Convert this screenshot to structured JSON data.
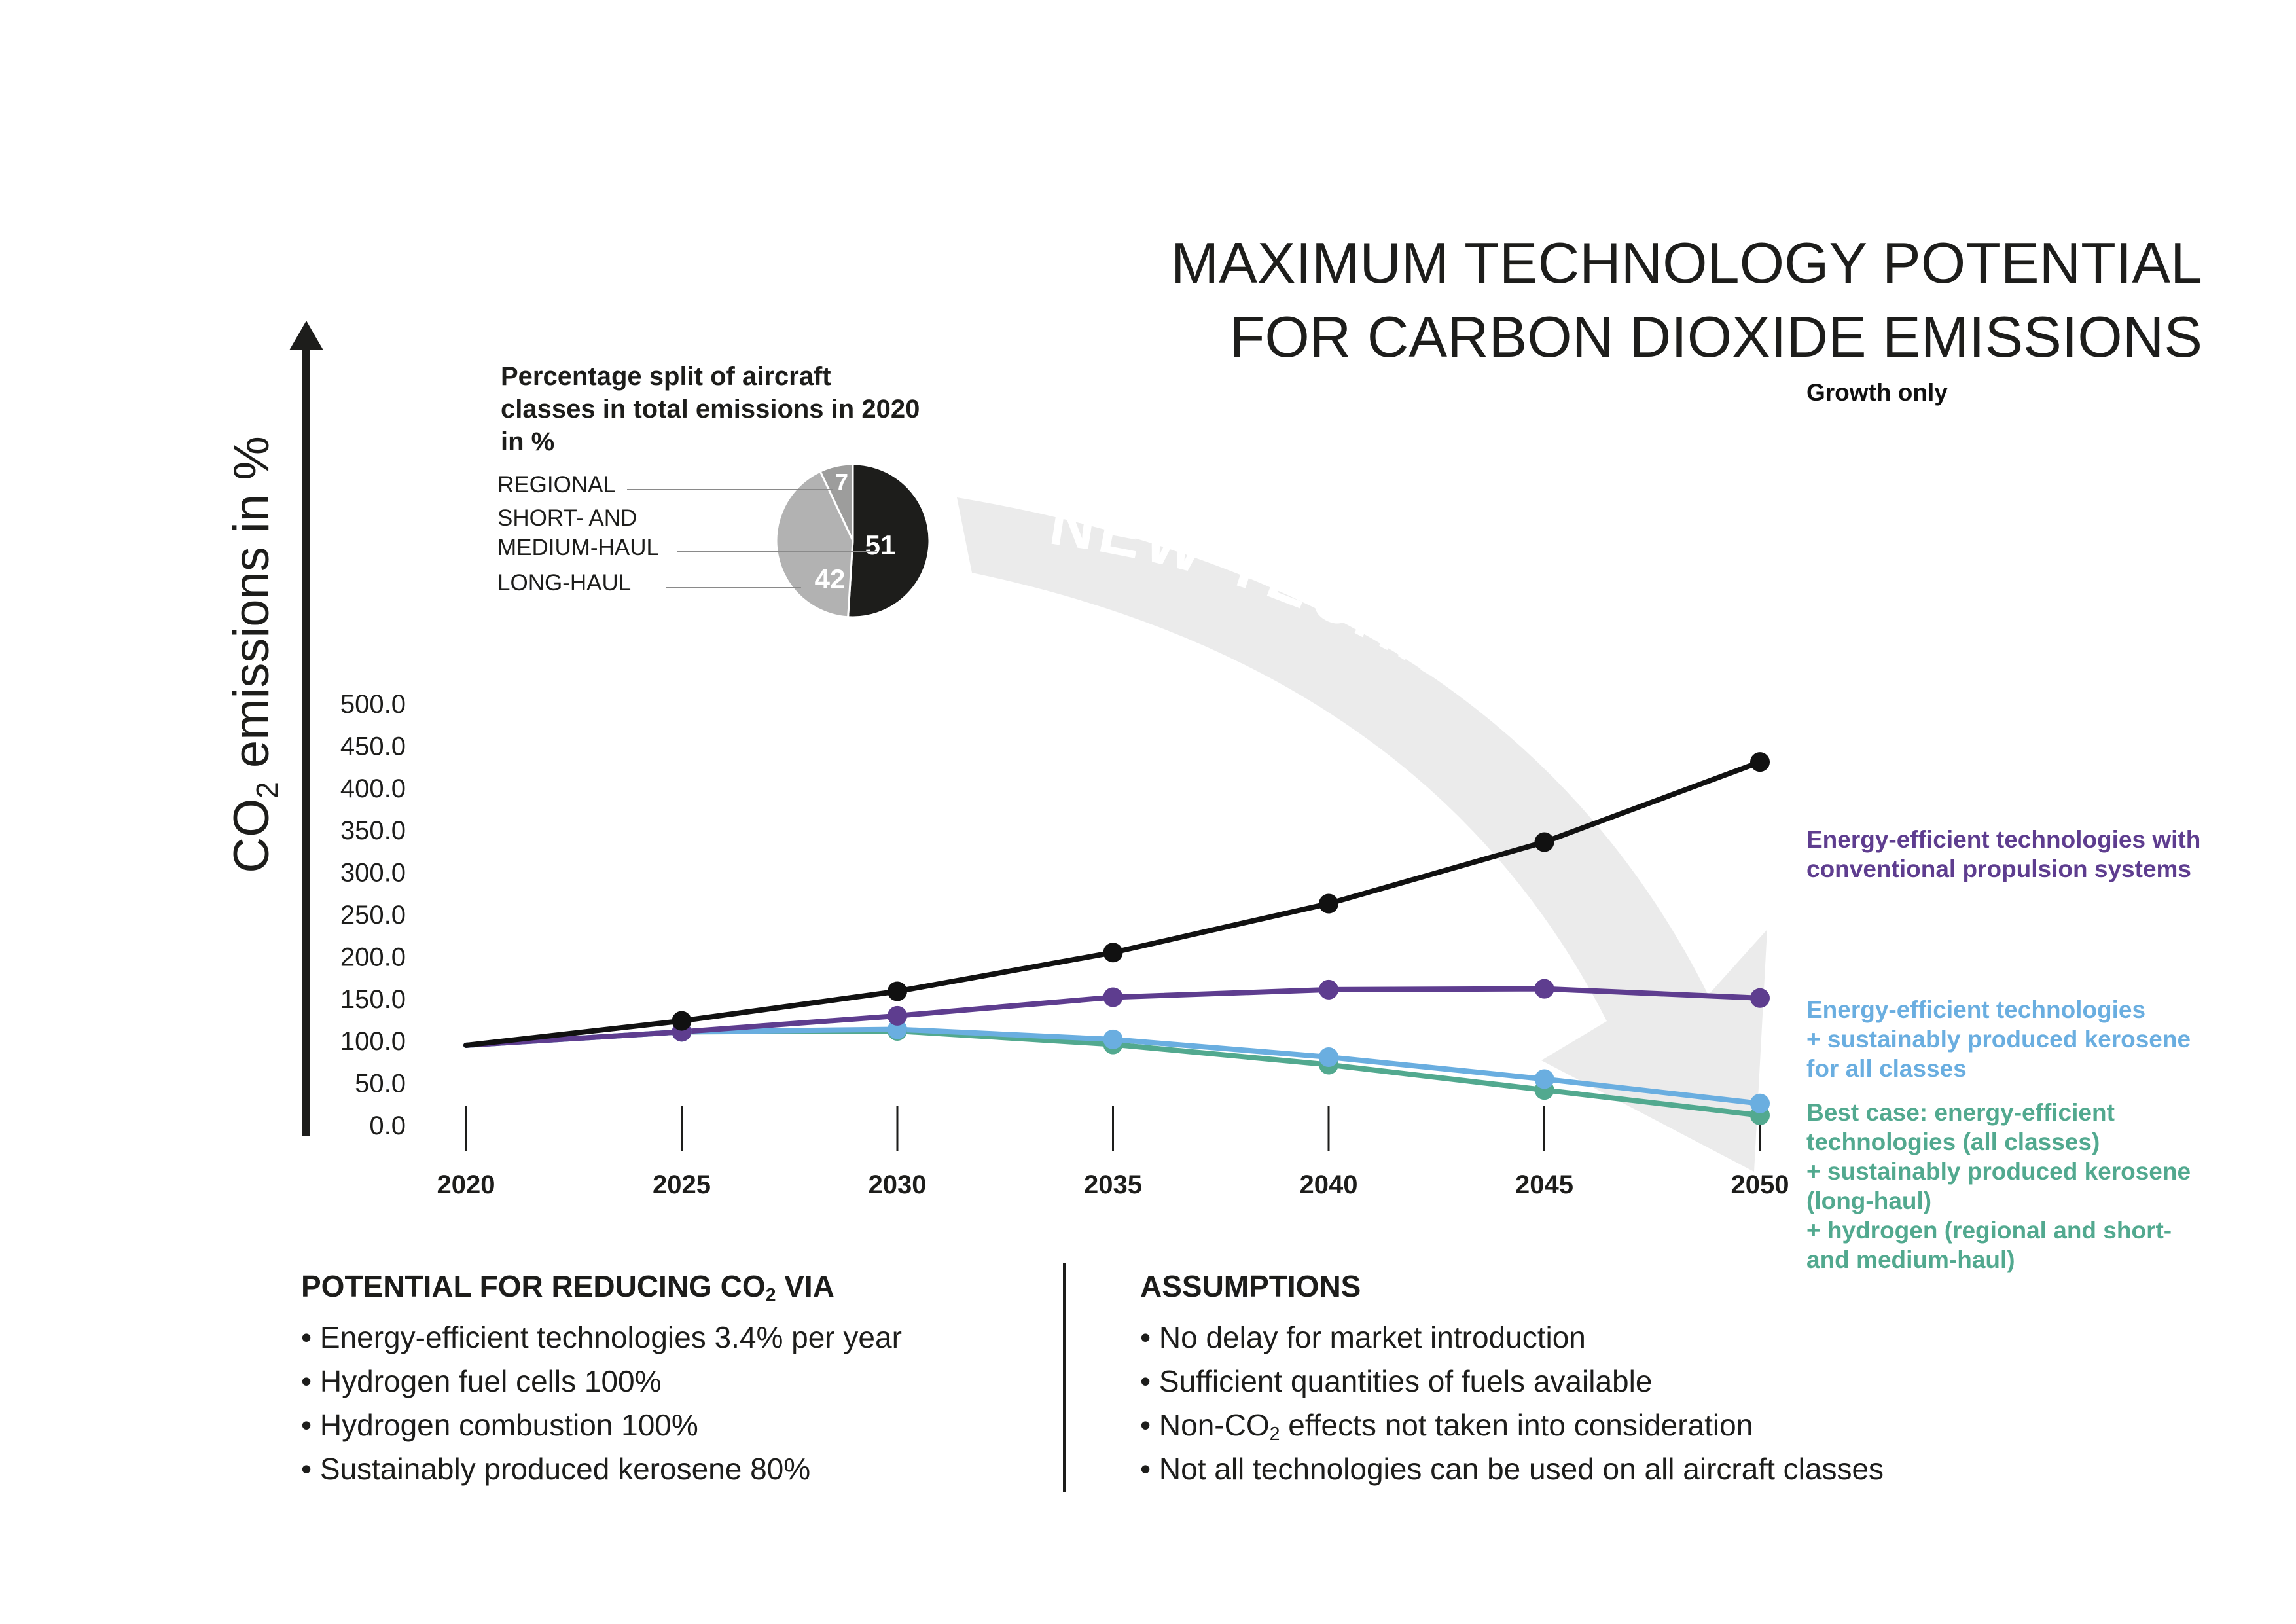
{
  "chart_data": {
    "type": "line",
    "title": [
      "MAXIMUM TECHNOLOGY POTENTIAL",
      "FOR CARBON DIOXIDE EMISSIONS"
    ],
    "ylabel_prefix": "CO",
    "ylabel_sub": "2",
    "ylabel_rest": " emissions in %",
    "ylim": [
      0,
      500
    ],
    "yticks": [
      "0.0",
      "50.0",
      "100.0",
      "150.0",
      "200.0",
      "250.0",
      "300.0",
      "350.0",
      "400.0",
      "450.0",
      "500.0"
    ],
    "x": [
      "2020",
      "2025",
      "2030",
      "2035",
      "2040",
      "2045",
      "2050"
    ],
    "grid": false,
    "series": [
      {
        "name": [
          "Growth only"
        ],
        "color": "#111111",
        "values": [
          94,
          123,
          158,
          204,
          262,
          335,
          430
        ]
      },
      {
        "name": [
          "Energy-efficient technologies with",
          "conventional propulsion systems"
        ],
        "color": "#5e3d8f",
        "values": [
          94,
          110,
          129,
          151,
          160,
          161,
          150
        ]
      },
      {
        "name": [
          "Energy-efficient technologies",
          "+ sustainably produced kerosene",
          "for all classes"
        ],
        "color": "#6aaee0",
        "values": [
          94,
          110,
          113,
          101,
          80,
          54,
          25
        ]
      },
      {
        "name": [
          "Best case: energy-efficient",
          "technologies (all classes)",
          "+ sustainably produced kerosene",
          "(long-haul)",
          "+ hydrogen (regional and short-",
          "and medium-haul)"
        ],
        "color": "#52a98f",
        "values": [
          94,
          110,
          111,
          95,
          71,
          41,
          11
        ]
      }
    ],
    "arrow_label": "NEW TECHNOLOGY",
    "inset_pie": {
      "title": [
        "Percentage split of aircraft",
        "classes in total emissions in 2020",
        "in %"
      ],
      "slices": [
        {
          "label": [
            "REGIONAL"
          ],
          "value": 7,
          "color": "#9d9d9c"
        },
        {
          "label": [
            "SHORT- AND",
            "MEDIUM-HAUL"
          ],
          "value": 51,
          "color": "#1d1d1b"
        },
        {
          "label": [
            "LONG-HAUL"
          ],
          "value": 42,
          "color": "#b2b2b2"
        }
      ]
    }
  },
  "potential": {
    "title_prefix": "POTENTIAL FOR REDUCING CO",
    "title_sub": "2",
    "title_rest": " VIA",
    "items": [
      "Energy-efficient technologies 3.4% per year",
      "Hydrogen fuel cells 100%",
      "Hydrogen combustion 100%",
      "Sustainably produced kerosene 80%"
    ]
  },
  "assumptions": {
    "title": "ASSUMPTIONS",
    "item1": "No delay for market introduction",
    "item2": "Sufficient quantities of fuels available",
    "item3_prefix": "Non-CO",
    "item3_sub": "2",
    "item3_rest": " effects not taken into consideration",
    "item4": "Not all technologies can be used on all aircraft classes"
  }
}
